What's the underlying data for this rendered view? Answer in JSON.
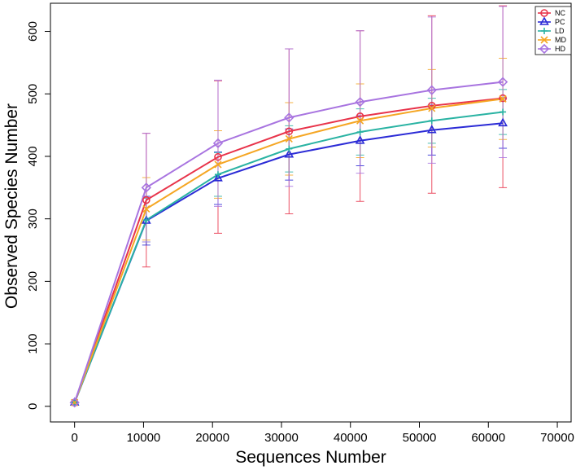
{
  "chart_data": {
    "type": "line",
    "title": "",
    "xlabel": "Sequences Number",
    "ylabel": "Observed Species Number",
    "xlim": [
      -3500,
      72000
    ],
    "ylim": [
      -25,
      645
    ],
    "xticks": [
      0,
      10000,
      20000,
      30000,
      40000,
      50000,
      60000,
      70000
    ],
    "xtick_labels": [
      "0",
      "10000",
      "20000",
      "30000",
      "40000",
      "50000",
      "60000",
      "70000"
    ],
    "yticks": [
      0,
      100,
      200,
      300,
      400,
      500,
      600
    ],
    "ytick_labels": [
      "0",
      "100",
      "200",
      "300",
      "400",
      "500",
      "600"
    ],
    "grid": false,
    "legend_position": "top-right",
    "x": [
      0,
      10400,
      20800,
      31100,
      41400,
      51800,
      62100
    ],
    "series": [
      {
        "name": "NC",
        "color": "#e8334a",
        "marker": "circle",
        "values": [
          6,
          330,
          399,
          440,
          464,
          481,
          493
        ],
        "err_low": [
          6,
          223,
          277,
          308,
          328,
          341,
          350
        ],
        "err_high": [
          6,
          437,
          521,
          572,
          601,
          625,
          641
        ]
      },
      {
        "name": "PC",
        "color": "#2b2bd6",
        "marker": "triangle",
        "values": [
          6,
          297,
          365,
          403,
          425,
          442,
          453
        ],
        "err_low": [
          6,
          258,
          323,
          362,
          385,
          402,
          413
        ],
        "err_high": [
          6,
          336,
          407,
          444,
          465,
          482,
          493
        ]
      },
      {
        "name": "LD",
        "color": "#2ab3a3",
        "marker": "plus",
        "values": [
          6,
          298,
          371,
          412,
          439,
          457,
          471
        ],
        "err_low": [
          6,
          263,
          336,
          375,
          402,
          421,
          435
        ],
        "err_high": [
          6,
          333,
          406,
          449,
          476,
          493,
          507
        ]
      },
      {
        "name": "MD",
        "color": "#f5a623",
        "marker": "cross",
        "values": [
          6,
          316,
          387,
          428,
          457,
          477,
          492
        ],
        "err_low": [
          6,
          266,
          333,
          370,
          398,
          415,
          427
        ],
        "err_high": [
          6,
          366,
          441,
          486,
          516,
          539,
          557
        ]
      },
      {
        "name": "HD",
        "color": "#a874e0",
        "marker": "diamond",
        "values": [
          6,
          350,
          421,
          462,
          487,
          506,
          519
        ],
        "err_low": [
          6,
          263,
          320,
          352,
          373,
          389,
          398
        ],
        "err_high": [
          6,
          437,
          522,
          572,
          601,
          623,
          640
        ]
      }
    ]
  }
}
